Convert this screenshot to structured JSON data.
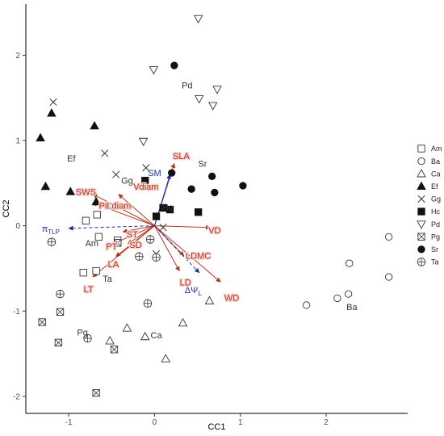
{
  "chart_data": {
    "type": "scatter",
    "xlabel": "CC1",
    "ylabel": "CC2",
    "xlim": [
      -1.5,
      2.95
    ],
    "ylim": [
      -2.2,
      2.6
    ],
    "x_ticks": [
      -1,
      0,
      1,
      2
    ],
    "y_ticks": [
      -2,
      -1,
      0,
      1,
      2
    ],
    "grid": false,
    "legend_position": "right",
    "legend": [
      {
        "name": "Am",
        "marker": "square-open"
      },
      {
        "name": "Ba",
        "marker": "circle-open"
      },
      {
        "name": "Ca",
        "marker": "triangle-open"
      },
      {
        "name": "Ef",
        "marker": "triangle-filled"
      },
      {
        "name": "Gg",
        "marker": "x"
      },
      {
        "name": "Hc",
        "marker": "square-filled"
      },
      {
        "name": "Pd",
        "marker": "triangle-down-open"
      },
      {
        "name": "Pg",
        "marker": "square-x"
      },
      {
        "name": "Sr",
        "marker": "circle-filled"
      },
      {
        "name": "Ta",
        "marker": "circle-plus"
      }
    ],
    "series": [
      {
        "name": "Am",
        "points": [
          [
            -0.8,
            0.06
          ],
          [
            -0.67,
            0.13
          ],
          [
            -0.65,
            -0.13
          ],
          [
            -0.83,
            -0.55
          ],
          [
            -0.68,
            -0.53
          ],
          [
            -0.43,
            -0.17
          ]
        ]
      },
      {
        "name": "Ba",
        "points": [
          [
            1.77,
            -0.93
          ],
          [
            2.13,
            -0.85
          ],
          [
            2.26,
            -0.8
          ],
          [
            2.27,
            -0.44
          ],
          [
            2.73,
            -0.13
          ],
          [
            2.73,
            -0.6
          ]
        ]
      },
      {
        "name": "Ca",
        "points": [
          [
            -0.32,
            -1.2
          ],
          [
            -0.52,
            -1.35
          ],
          [
            -0.11,
            -1.3
          ],
          [
            0.13,
            -1.56
          ],
          [
            0.33,
            -1.14
          ],
          [
            0.64,
            -0.88
          ]
        ]
      },
      {
        "name": "Ef",
        "points": [
          [
            -1.33,
            1.03
          ],
          [
            -1.27,
            0.46
          ],
          [
            -1.2,
            1.32
          ],
          [
            -0.98,
            0.4
          ],
          [
            -0.7,
            1.17
          ],
          [
            -0.68,
            0.28
          ]
        ]
      },
      {
        "name": "Gg",
        "points": [
          [
            -1.18,
            1.45
          ],
          [
            -0.58,
            0.85
          ],
          [
            -0.45,
            0.6
          ],
          [
            -0.1,
            0.68
          ],
          [
            0.1,
            -0.02
          ],
          [
            0.02,
            -0.33
          ]
        ]
      },
      {
        "name": "Hc",
        "points": [
          [
            -0.11,
            0.53
          ],
          [
            0.02,
            0.11
          ],
          [
            0.1,
            0.21
          ],
          [
            0.18,
            0.19
          ],
          [
            0.51,
            0.16
          ]
        ]
      },
      {
        "name": "Pd",
        "points": [
          [
            -0.01,
            1.83
          ],
          [
            0.51,
            2.43
          ],
          [
            0.52,
            1.49
          ],
          [
            0.68,
            1.41
          ],
          [
            0.73,
            1.6
          ],
          [
            -0.13,
            0.99
          ]
        ]
      },
      {
        "name": "Pg",
        "points": [
          [
            -1.31,
            -1.13
          ],
          [
            -1.1,
            -1.01
          ],
          [
            -1.12,
            -1.37
          ],
          [
            -0.47,
            -1.45
          ],
          [
            -0.68,
            -1.96
          ],
          [
            -0.43,
            -0.2
          ]
        ]
      },
      {
        "name": "Sr",
        "points": [
          [
            0.23,
            1.88
          ],
          [
            0.2,
            0.62
          ],
          [
            0.43,
            0.43
          ],
          [
            0.67,
            0.58
          ],
          [
            0.7,
            0.39
          ],
          [
            1.03,
            0.47
          ]
        ]
      },
      {
        "name": "Ta",
        "points": [
          [
            -1.2,
            -0.19
          ],
          [
            -1.1,
            -0.8
          ],
          [
            -0.78,
            -1.32
          ],
          [
            -0.05,
            -0.16
          ],
          [
            -0.18,
            -0.36
          ],
          [
            -0.08,
            -0.91
          ],
          [
            0.02,
            -0.37
          ]
        ]
      }
    ],
    "species_labels": [
      {
        "text": "Am",
        "x": -0.73,
        "y": -0.2
      },
      {
        "text": "Ba",
        "x": 2.3,
        "y": -0.95
      },
      {
        "text": "Ca",
        "x": 0.02,
        "y": -1.28
      },
      {
        "text": "Ef",
        "x": -0.97,
        "y": 0.79
      },
      {
        "text": "Gg",
        "x": -0.32,
        "y": 0.53
      },
      {
        "text": "Hc",
        "x": 0.15,
        "y": 0.22
      },
      {
        "text": "Pd",
        "x": 0.38,
        "y": 1.65
      },
      {
        "text": "Pg",
        "x": -0.84,
        "y": -1.25
      },
      {
        "text": "Sr",
        "x": 0.56,
        "y": 0.73
      },
      {
        "text": "Ta",
        "x": -0.55,
        "y": -0.62
      }
    ],
    "vectors_origin": [
      0,
      0
    ],
    "vectors": [
      {
        "label": "SLA",
        "x": 0.23,
        "y": 0.73,
        "color": "#b5361c",
        "dashed": false,
        "label_x": 0.31,
        "label_y": 0.82
      },
      {
        "label": "SM",
        "x": 0.18,
        "y": 0.6,
        "color": "#1f2aa8",
        "dashed": false,
        "label_x": 0.0,
        "label_y": 0.62
      },
      {
        "label": "Vdiam",
        "x": -0.42,
        "y": 0.37,
        "color": "#b5361c",
        "dashed": false,
        "label_x": -0.1,
        "label_y": 0.46
      },
      {
        "label": "SWS",
        "x": -0.72,
        "y": 0.37,
        "color": "#b5361c",
        "dashed": false,
        "label_x": -0.8,
        "label_y": 0.4
      },
      {
        "label": "Pit.diam",
        "x": -0.72,
        "y": 0.27,
        "color": "#b5361c",
        "dashed": false,
        "label_x": -0.46,
        "label_y": 0.24
      },
      {
        "label": "VD",
        "x": 0.65,
        "y": -0.02,
        "color": "#b5361c",
        "dashed": false,
        "label_x": 0.7,
        "label_y": -0.05
      },
      {
        "label": "LDMC",
        "x": 0.34,
        "y": -0.35,
        "color": "#b5361c",
        "dashed": false,
        "label_x": 0.51,
        "label_y": -0.35
      },
      {
        "label": "LD",
        "x": 0.29,
        "y": -0.53,
        "color": "#b5361c",
        "dashed": false,
        "label_x": 0.36,
        "label_y": -0.66
      },
      {
        "label": "WD",
        "x": 0.77,
        "y": -0.66,
        "color": "#b5361c",
        "dashed": false,
        "label_x": 0.9,
        "label_y": -0.84
      },
      {
        "label": "ST",
        "x": -0.37,
        "y": -0.07,
        "color": "#b5361c",
        "dashed": false,
        "label_x": -0.26,
        "label_y": -0.1
      },
      {
        "label": "PT",
        "x": -0.48,
        "y": -0.21,
        "color": "#b5361c",
        "dashed": false,
        "label_x": -0.5,
        "label_y": -0.24
      },
      {
        "label": "SD",
        "x": -0.31,
        "y": -0.21,
        "color": "#b5361c",
        "dashed": false,
        "label_x": -0.22,
        "label_y": -0.22
      },
      {
        "label": "LA",
        "x": -0.45,
        "y": -0.36,
        "color": "#b5361c",
        "dashed": false,
        "label_x": -0.48,
        "label_y": -0.45
      },
      {
        "label": "LT",
        "x": -0.72,
        "y": -0.6,
        "color": "#b5361c",
        "dashed": false,
        "label_x": -0.77,
        "label_y": -0.74
      },
      {
        "label": "πTLP",
        "x": -1.0,
        "y": -0.03,
        "color": "#1f2aa8",
        "dashed": true,
        "label_x": -1.21,
        "label_y": -0.03
      },
      {
        "label": "ΔΨL",
        "x": 0.52,
        "y": -0.55,
        "color": "#1f2aa8",
        "dashed": true,
        "label_x": 0.45,
        "label_y": -0.75
      }
    ]
  }
}
